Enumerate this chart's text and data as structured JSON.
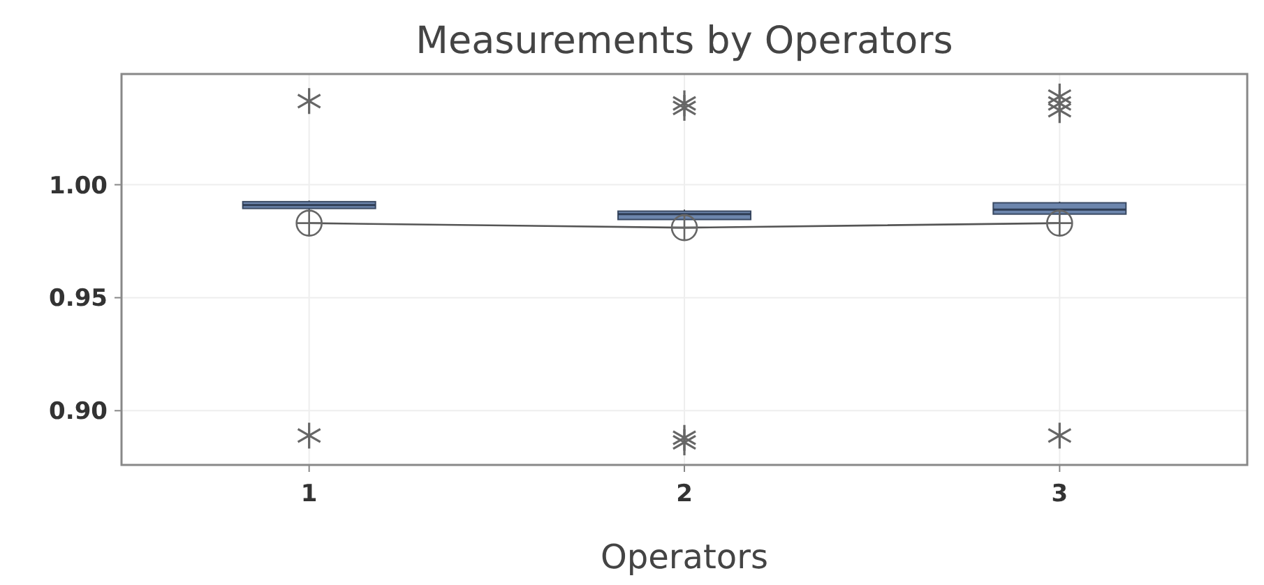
{
  "chart_data": {
    "type": "box",
    "title": "Measurements by Operators",
    "xlabel": "Operators",
    "categories": [
      "1",
      "2",
      "3"
    ],
    "series": [
      {
        "type": "box",
        "color": "#6d86ad",
        "boxes": [
          {
            "low": 0.9885,
            "q1": 0.9895,
            "median": 0.991,
            "q3": 0.9925,
            "high": 0.993,
            "mean": 0.983,
            "outliers": [
              1.037,
              0.889
            ]
          },
          {
            "low": 0.984,
            "q1": 0.9846,
            "median": 0.987,
            "q3": 0.9883,
            "high": 0.989,
            "mean": 0.981,
            "outliers": [
              1.036,
              1.034,
              0.888,
              0.886
            ]
          },
          {
            "low": 0.9865,
            "q1": 0.987,
            "median": 0.989,
            "q3": 0.992,
            "high": 0.9925,
            "mean": 0.983,
            "outliers": [
              1.039,
              1.036,
              1.033,
              0.889
            ]
          }
        ]
      },
      {
        "type": "line",
        "color": "#555555",
        "values": [
          0.983,
          0.981,
          0.983
        ],
        "marker": "none"
      }
    ],
    "ylim": [
      0.876,
      1.049
    ],
    "yticks": [
      {
        "value": 0.9,
        "label": "0.90"
      },
      {
        "value": 0.95,
        "label": "0.95"
      },
      {
        "value": 1,
        "label": "1.00"
      }
    ],
    "grid": true
  }
}
